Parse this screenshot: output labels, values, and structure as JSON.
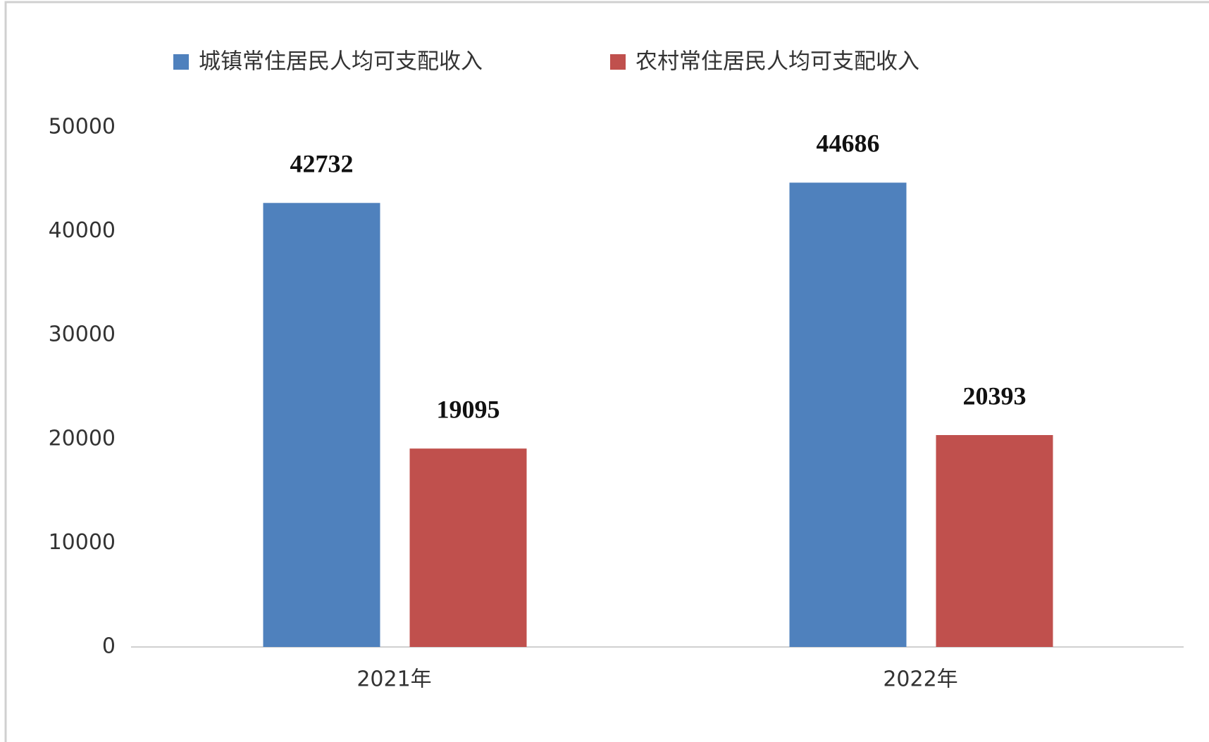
{
  "chart_data": {
    "type": "bar",
    "categories": [
      "2021年",
      "2022年"
    ],
    "series": [
      {
        "name": "城镇常住居民人均可支配收入",
        "color": "#4f81bd",
        "values": [
          42732,
          44686
        ]
      },
      {
        "name": "农村常住居民人均可支配收入",
        "color": "#c0504d",
        "values": [
          19095,
          20393
        ]
      }
    ],
    "ylim": [
      0,
      50000
    ],
    "yticks": [
      0,
      10000,
      20000,
      30000,
      40000,
      50000
    ],
    "grid": false
  }
}
